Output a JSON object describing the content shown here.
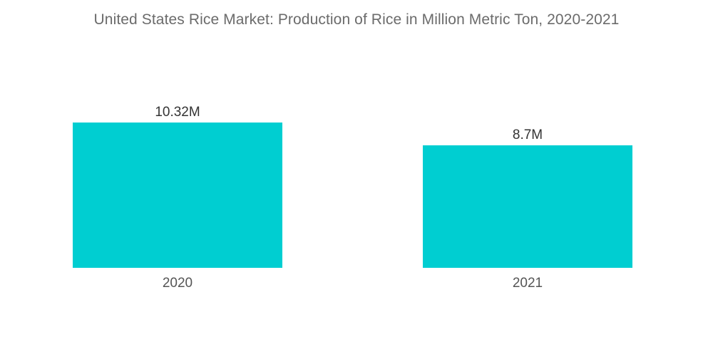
{
  "chart_data": {
    "type": "bar",
    "title": "United States Rice Market: Production of Rice in Million Metric Ton, 2020-2021",
    "categories": [
      "2020",
      "2021"
    ],
    "values": [
      10.32,
      8.7
    ],
    "data_labels": [
      "10.32M",
      "8.7M"
    ],
    "xlabel": "",
    "ylabel": "",
    "ylim": [
      0,
      10.32
    ],
    "grid": false,
    "legend": "none",
    "bar_color": "#00CED1"
  }
}
